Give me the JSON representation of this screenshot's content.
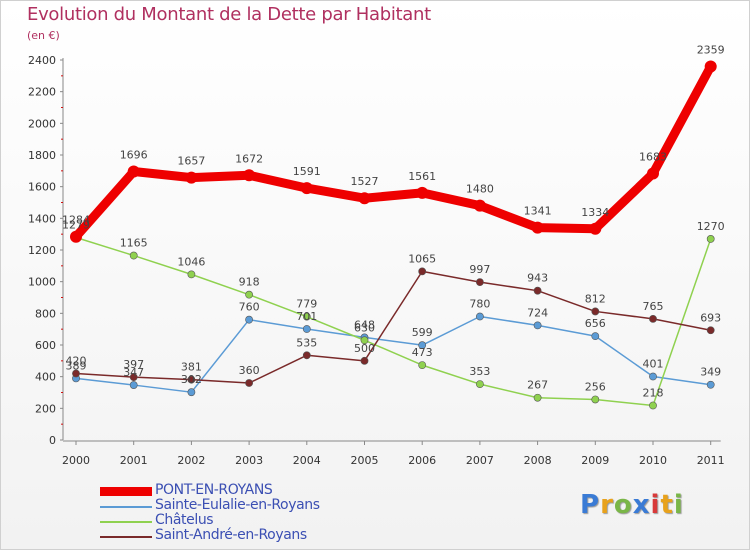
{
  "title": "Evolution du Montant de la Dette par Habitant",
  "subtitle": "(en €)",
  "logo": {
    "text": "Proxiti",
    "letter_colors": [
      "#3a7bd5",
      "#e8a21c",
      "#7ab648",
      "#3a7bd5",
      "#d83a3a",
      "#e8a21c",
      "#7ab648"
    ]
  },
  "chart_data": {
    "type": "line",
    "categories": [
      "2000",
      "2001",
      "2002",
      "2003",
      "2004",
      "2005",
      "2006",
      "2007",
      "2008",
      "2009",
      "2010",
      "2011"
    ],
    "ylim": [
      0,
      2400
    ],
    "yticks": [
      0,
      200,
      400,
      600,
      800,
      1000,
      1200,
      1400,
      1600,
      1800,
      2000,
      2200,
      2400
    ],
    "grid": false,
    "legend_position": "bottom-left",
    "series": [
      {
        "name": "PONT-EN-ROYANS",
        "color": "#ee0000",
        "stroke_style": "thick",
        "values": [
          1284,
          1696,
          1657,
          1672,
          1591,
          1527,
          1561,
          1480,
          1341,
          1334,
          1683,
          2359
        ],
        "labels": [
          "1284",
          "1696",
          "1657",
          "1672",
          "1591",
          "1527",
          "1561",
          "1480",
          "1341",
          "1334",
          "1683",
          "2359"
        ]
      },
      {
        "name": "Sainte-Eulalie-en-Royans",
        "color": "#5b9bd5",
        "stroke_style": "thin",
        "values": [
          389,
          347,
          302,
          760,
          701,
          648,
          599,
          780,
          724,
          656,
          401,
          349
        ],
        "labels": [
          "389",
          "347",
          "302",
          "760",
          "701",
          "648",
          "599",
          "780",
          "724",
          "656",
          "401",
          "349"
        ]
      },
      {
        "name": "Châtelus",
        "color": "#8fd14f",
        "stroke_style": "thin",
        "values": [
          1279,
          1165,
          1046,
          918,
          779,
          630,
          473,
          353,
          267,
          256,
          218,
          1270
        ],
        "labels": [
          "1279",
          "1165",
          "1046",
          "918",
          "779",
          "630",
          "473",
          "353",
          "267",
          "256",
          "218",
          "1270"
        ]
      },
      {
        "name": "Saint-André-en-Royans",
        "color": "#7a2a2a",
        "stroke_style": "thin",
        "values": [
          420,
          397,
          381,
          360,
          535,
          500,
          1065,
          997,
          943,
          812,
          765,
          693
        ],
        "labels": [
          "420",
          "397",
          "381",
          "360",
          "535",
          "500",
          "1065",
          "997",
          "943",
          "812",
          "765",
          "693"
        ]
      }
    ]
  }
}
